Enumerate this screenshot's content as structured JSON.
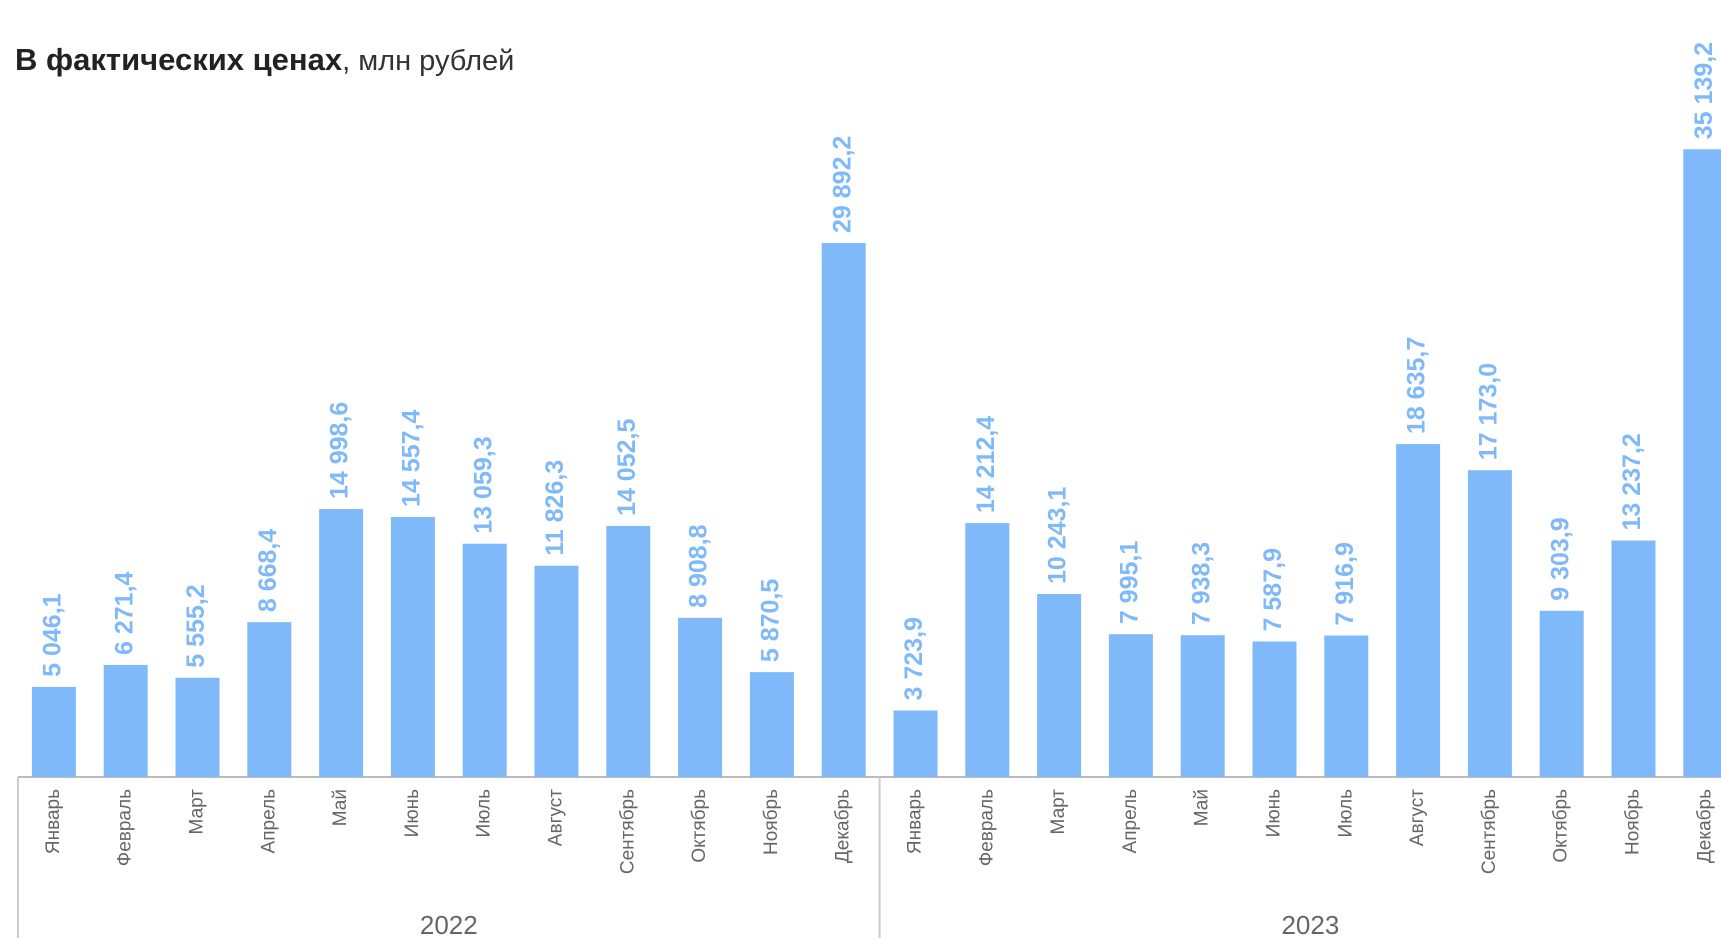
{
  "chart_data": {
    "type": "bar",
    "title": "В фактических ценах",
    "title_unit": ", млн рублей",
    "color": "#7fb9f9",
    "ylim": [
      0,
      37000
    ],
    "groups": [
      {
        "name": "2022",
        "categories": [
          "Январь",
          "Февраль",
          "Март",
          "Апрель",
          "Май",
          "Июнь",
          "Июль",
          "Август",
          "Сентябрь",
          "Октябрь",
          "Ноябрь",
          "Декабрь"
        ],
        "values": [
          5046.1,
          6271.4,
          5555.2,
          8668.4,
          14998.6,
          14557.4,
          13059.3,
          11826.3,
          14052.5,
          8908.8,
          5870.5,
          29892.2
        ],
        "value_labels": [
          "5 046,1",
          "6 271,4",
          "5 555,2",
          "8 668,4",
          "14 998,6",
          "14 557,4",
          "13 059,3",
          "11 826,3",
          "14 052,5",
          "8 908,8",
          "5 870,5",
          "29 892,2"
        ]
      },
      {
        "name": "2023",
        "categories": [
          "Январь",
          "Февраль",
          "Март",
          "Апрель",
          "Май",
          "Июнь",
          "Июль",
          "Август",
          "Сентябрь",
          "Октябрь",
          "Ноябрь",
          "Декабрь"
        ],
        "values": [
          3723.9,
          14212.4,
          10243.1,
          7995.1,
          7938.3,
          7587.9,
          7916.9,
          18635.7,
          17173.0,
          9303.9,
          13237.2,
          35139.2
        ],
        "value_labels": [
          "3 723,9",
          "14 212,4",
          "10 243,1",
          "7 995,1",
          "7 938,3",
          "7 587,9",
          "7 916,9",
          "18 635,7",
          "17 173,0",
          "9 303,9",
          "13 237,2",
          "35 139,2"
        ]
      }
    ]
  }
}
